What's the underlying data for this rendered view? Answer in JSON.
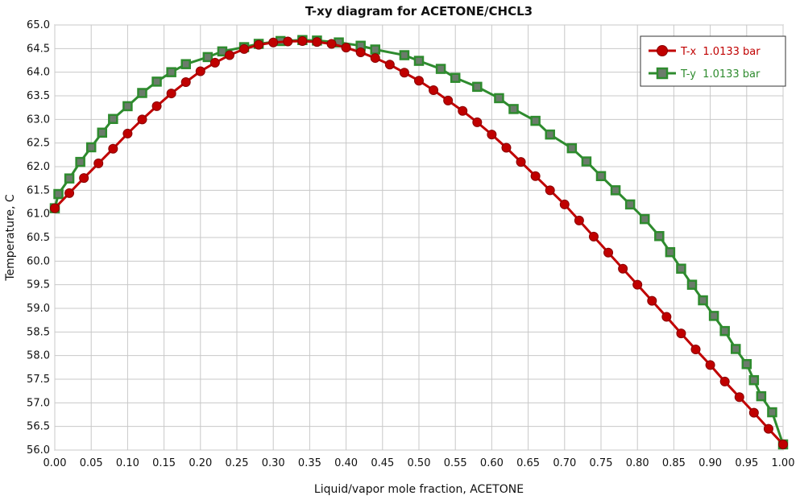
{
  "chart_data": {
    "type": "line",
    "title": "T-xy diagram for ACETONE/CHCL3",
    "xlabel": "Liquid/vapor mole fraction, ACETONE",
    "ylabel": "Temperature, C",
    "xlim": [
      0,
      1
    ],
    "ylim": [
      56,
      65
    ],
    "grid": true,
    "legend_position": "top-right",
    "x_ticks": [
      "0.00",
      "0.05",
      "0.10",
      "0.15",
      "0.20",
      "0.25",
      "0.30",
      "0.35",
      "0.40",
      "0.45",
      "0.50",
      "0.55",
      "0.60",
      "0.65",
      "0.70",
      "0.75",
      "0.80",
      "0.85",
      "0.90",
      "0.95",
      "1.00"
    ],
    "y_ticks": [
      "56.0",
      "56.5",
      "57.0",
      "57.5",
      "58.0",
      "58.5",
      "59.0",
      "59.5",
      "60.0",
      "60.5",
      "61.0",
      "61.5",
      "62.0",
      "62.5",
      "63.0",
      "63.5",
      "64.0",
      "64.5",
      "65.0"
    ],
    "series": [
      {
        "name": "T-x  1.0133 bar",
        "color": "#c00000",
        "marker": "circle",
        "x": [
          0.0,
          0.02,
          0.04,
          0.06,
          0.08,
          0.1,
          0.12,
          0.14,
          0.16,
          0.18,
          0.2,
          0.22,
          0.24,
          0.26,
          0.28,
          0.3,
          0.32,
          0.34,
          0.36,
          0.38,
          0.4,
          0.42,
          0.44,
          0.46,
          0.48,
          0.5,
          0.52,
          0.54,
          0.56,
          0.58,
          0.6,
          0.62,
          0.64,
          0.66,
          0.68,
          0.7,
          0.72,
          0.74,
          0.76,
          0.78,
          0.8,
          0.82,
          0.84,
          0.86,
          0.88,
          0.9,
          0.92,
          0.94,
          0.96,
          0.98,
          1.0
        ],
        "y": [
          61.12,
          61.44,
          61.76,
          62.07,
          62.38,
          62.7,
          63.0,
          63.28,
          63.55,
          63.79,
          64.02,
          64.2,
          64.36,
          64.49,
          64.58,
          64.63,
          64.65,
          64.66,
          64.64,
          64.6,
          64.52,
          64.42,
          64.3,
          64.16,
          63.99,
          63.82,
          63.62,
          63.4,
          63.18,
          62.94,
          62.68,
          62.4,
          62.1,
          61.8,
          61.5,
          61.2,
          60.86,
          60.52,
          60.18,
          59.84,
          59.5,
          59.16,
          58.82,
          58.47,
          58.13,
          57.8,
          57.45,
          57.12,
          56.79,
          56.45,
          56.12
        ]
      },
      {
        "name": "T-y  1.0133 bar",
        "color": "#2e8b2e",
        "marker": "square",
        "x": [
          0.0,
          0.005,
          0.02,
          0.035,
          0.05,
          0.065,
          0.08,
          0.1,
          0.12,
          0.14,
          0.16,
          0.18,
          0.21,
          0.23,
          0.26,
          0.28,
          0.31,
          0.34,
          0.36,
          0.39,
          0.42,
          0.44,
          0.48,
          0.5,
          0.53,
          0.55,
          0.58,
          0.61,
          0.63,
          0.66,
          0.68,
          0.71,
          0.73,
          0.75,
          0.77,
          0.79,
          0.81,
          0.83,
          0.845,
          0.86,
          0.875,
          0.89,
          0.905,
          0.92,
          0.935,
          0.95,
          0.96,
          0.97,
          0.985,
          1.0
        ],
        "y": [
          61.12,
          61.42,
          61.75,
          62.1,
          62.41,
          62.72,
          63.01,
          63.28,
          63.56,
          63.8,
          64.0,
          64.17,
          64.32,
          64.44,
          64.53,
          64.6,
          64.66,
          64.68,
          64.67,
          64.63,
          64.56,
          64.48,
          64.36,
          64.24,
          64.07,
          63.88,
          63.69,
          63.45,
          63.22,
          62.97,
          62.68,
          62.39,
          62.11,
          61.8,
          61.5,
          61.2,
          60.89,
          60.53,
          60.19,
          59.84,
          59.5,
          59.17,
          58.84,
          58.52,
          58.14,
          57.82,
          57.48,
          57.14,
          56.8,
          56.12
        ]
      }
    ]
  }
}
